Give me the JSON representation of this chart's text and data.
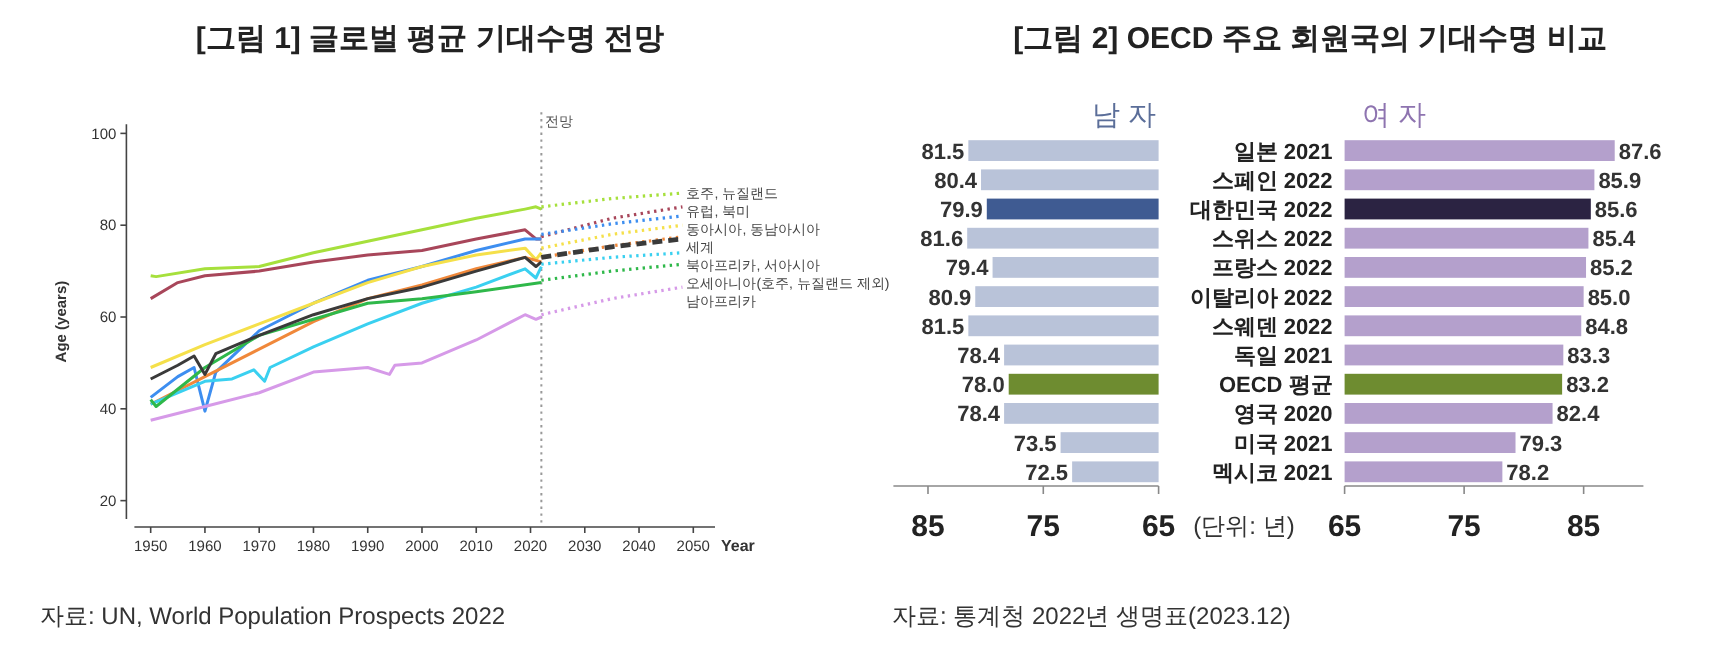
{
  "chart_data": [
    {
      "type": "line",
      "title": "[그림 1] 글로벌 평균 기대수명 전망",
      "xlabel": "Year",
      "ylabel": "Age (years)",
      "xlim": [
        1947,
        2054
      ],
      "ylim": [
        16,
        102
      ],
      "xticks": [
        1950,
        1960,
        1970,
        1980,
        1990,
        2000,
        2010,
        2020,
        2030,
        2040,
        2050
      ],
      "yticks": [
        20,
        40,
        60,
        80,
        100
      ],
      "ref_lines": [
        {
          "axis": "x",
          "value": 2022,
          "label": "전망",
          "line_style": "dotted",
          "color": "#999999"
        }
      ],
      "series": [
        {
          "color": "#a6e03c",
          "x": [
            1950,
            1951,
            1960,
            1970,
            1980,
            1990,
            2000,
            2010,
            2019,
            2021,
            2022
          ],
          "values": [
            69,
            68.8,
            70.5,
            71,
            74,
            76.5,
            79,
            81.5,
            83.5,
            84,
            83.5
          ]
        },
        {
          "color": "#a8465a",
          "x": [
            1950,
            1955,
            1960,
            1970,
            1980,
            1990,
            2000,
            2010,
            2019,
            2021,
            2022
          ],
          "values": [
            64,
            67.5,
            69,
            70,
            72,
            73.5,
            74.5,
            77,
            79,
            77,
            77
          ]
        },
        {
          "color": "#3d8ef0",
          "x": [
            1950,
            1955,
            1958,
            1960,
            1962,
            1970,
            1980,
            1990,
            2000,
            2010,
            2019,
            2022
          ],
          "values": [
            42.5,
            47,
            49,
            39.5,
            48,
            57,
            63,
            68,
            71,
            74.5,
            77,
            77
          ]
        },
        {
          "color": "#f5e04a",
          "x": [
            1950,
            1960,
            1970,
            1980,
            1990,
            2000,
            2010,
            2019,
            2021,
            2022
          ],
          "values": [
            49,
            54,
            58.5,
            63,
            67.5,
            71,
            73.5,
            75,
            72.5,
            74
          ]
        },
        {
          "color": "#f0883a",
          "x": [
            1950,
            1960,
            1970,
            1980,
            1990,
            2000,
            2010,
            2019,
            2022
          ],
          "values": [
            41,
            47,
            53,
            59,
            64,
            67,
            70.5,
            73,
            72
          ]
        },
        {
          "color": "#3ad0f0",
          "x": [
            1950,
            1960,
            1965,
            1969,
            1971,
            1972,
            1980,
            1990,
            2000,
            2010,
            2019,
            2021,
            2022
          ],
          "values": [
            41,
            46,
            46.5,
            48.5,
            46,
            49,
            53.5,
            58.5,
            63,
            66.5,
            70.5,
            68.5,
            71
          ]
        },
        {
          "color": "#2fb84a",
          "x": [
            1950,
            1951,
            1960,
            1970,
            1980,
            1990,
            2000,
            2010,
            2022
          ],
          "values": [
            42,
            40.5,
            49,
            56,
            59.5,
            63,
            64,
            65.5,
            67.5
          ]
        },
        {
          "color": "#d69ae8",
          "x": [
            1950,
            1960,
            1970,
            1980,
            1990,
            1994,
            1995,
            2000,
            2010,
            2019,
            2021,
            2022
          ],
          "values": [
            37.5,
            40.5,
            43.5,
            48,
            49,
            47.5,
            49.5,
            50,
            55,
            60.5,
            59.5,
            60
          ]
        },
        {
          "color": "#3a3a3a",
          "x": [
            1950,
            1955,
            1958,
            1960,
            1962,
            1970,
            1980,
            1990,
            2000,
            2010,
            2019,
            2021,
            2022
          ],
          "values": [
            46.5,
            49.5,
            51.5,
            47.5,
            52,
            56,
            60.5,
            64,
            66.5,
            70,
            73,
            71,
            72
          ]
        },
        {
          "name": "호주, 뉴질랜드",
          "color": "#a6e03c",
          "line_style": "dotted",
          "x": [
            2022,
            2035,
            2048
          ],
          "values": [
            84,
            85.8,
            87
          ]
        },
        {
          "name": "유럽, 북미",
          "color": "#a8465a",
          "line_style": "dotted",
          "x": [
            2022,
            2035,
            2048
          ],
          "values": [
            77.5,
            81.5,
            84
          ]
        },
        {
          "name": "동아시아, 동남아시아",
          "color": "#3d8ef0",
          "line_style": "dotted",
          "x": [
            2022,
            2035,
            2048
          ],
          "values": [
            78,
            80.3,
            82
          ]
        },
        {
          "color": "#f5e04a",
          "line_style": "dotted",
          "x": [
            2022,
            2035,
            2048
          ],
          "values": [
            75,
            78,
            80
          ]
        },
        {
          "color": "#f0883a",
          "line_style": "dotted",
          "x": [
            2022,
            2035,
            2048
          ],
          "values": [
            73,
            75.5,
            77.5
          ]
        },
        {
          "name": "세계",
          "color": "#3a3a3a",
          "line_style": "dashed",
          "x": [
            2022,
            2035,
            2048
          ],
          "values": [
            73,
            75.3,
            77
          ]
        },
        {
          "name": "북아프리카, 서아시아",
          "color": "#3ad0f0",
          "line_style": "dotted",
          "x": [
            2022,
            2035,
            2048
          ],
          "values": [
            71.5,
            73,
            74
          ]
        },
        {
          "name": "오세아니아(호주, 뉴질랜드 제외)",
          "color": "#2fb84a",
          "line_style": "dotted",
          "x": [
            2022,
            2035,
            2048
          ],
          "values": [
            68,
            70,
            71.5
          ]
        },
        {
          "name": "남아프리카",
          "color": "#d69ae8",
          "line_style": "dotted",
          "x": [
            2022,
            2035,
            2048
          ],
          "values": [
            60.5,
            64,
            66.5
          ]
        }
      ],
      "annotations": [
        "자료: UN, World Population Prospects 2022"
      ]
    },
    {
      "type": "bar",
      "orientation": "horizontal",
      "title": "[그림 2] OECD 주요 회원국의 기대수명 비교",
      "subtitle": "남 자",
      "tick_labels": "x",
      "xlim": [
        88,
        65
      ],
      "xticks": [
        85,
        75,
        65
      ],
      "categories": [
        "일본 2021",
        "스페인 2022",
        "대한민국 2022",
        "스위스 2022",
        "프랑스 2022",
        "이탈리아 2022",
        "스웨덴 2022",
        "독일 2021",
        "OECD 평균",
        "영국 2020",
        "미국 2021",
        "멕시코 2021"
      ],
      "values": [
        81.5,
        80.4,
        79.9,
        81.6,
        79.4,
        80.9,
        81.5,
        78.4,
        78.0,
        78.4,
        73.5,
        72.5
      ],
      "value_labels": [
        "81.5",
        "80.4",
        "79.9",
        "81.6",
        "79.4",
        "80.9",
        "81.5",
        "78.4",
        "78.0",
        "78.4",
        "73.5",
        "72.5"
      ],
      "colors": [
        "#b9c3d9",
        "#b9c3d9",
        "#3f5b92",
        "#b9c3d9",
        "#b9c3d9",
        "#b9c3d9",
        "#b9c3d9",
        "#b9c3d9",
        "#6e8c30",
        "#b9c3d9",
        "#b9c3d9",
        "#b9c3d9"
      ]
    },
    {
      "type": "bar",
      "orientation": "horizontal",
      "title": "여 자",
      "xlim": [
        65,
        90
      ],
      "xticks": [
        65,
        75,
        85
      ],
      "categories": [
        "일본 2021",
        "스페인 2022",
        "대한민국 2022",
        "스위스 2022",
        "프랑스 2022",
        "이탈리아 2022",
        "스웨덴 2022",
        "독일 2021",
        "OECD 평균",
        "영국 2020",
        "미국 2021",
        "멕시코 2021"
      ],
      "values": [
        87.6,
        85.9,
        85.6,
        85.4,
        85.2,
        85.0,
        84.8,
        83.3,
        83.2,
        82.4,
        79.3,
        78.2
      ],
      "value_labels": [
        "87.6",
        "85.9",
        "85.6",
        "85.4",
        "85.2",
        "85.0",
        "84.8",
        "83.3",
        "83.2",
        "82.4",
        "79.3",
        "78.2"
      ],
      "colors": [
        "#b4a0cc",
        "#b4a0cc",
        "#2b2342",
        "#b4a0cc",
        "#b4a0cc",
        "#b4a0cc",
        "#b4a0cc",
        "#b4a0cc",
        "#6e8c30",
        "#b4a0cc",
        "#b4a0cc",
        "#b4a0cc"
      ],
      "annotations": [
        "(단위: 년)",
        "자료: 통계청 2022년 생명표(2023.12)"
      ]
    }
  ]
}
